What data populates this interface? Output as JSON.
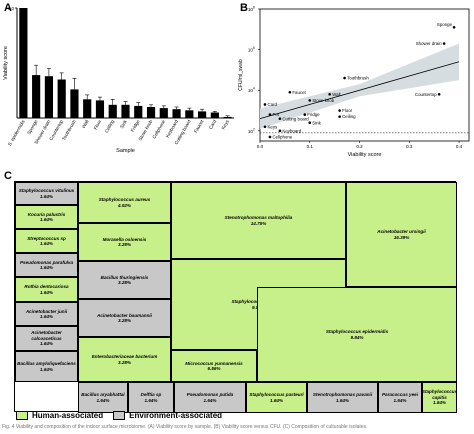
{
  "panels": {
    "a": "A",
    "b": "B",
    "c": "C"
  },
  "chart_data": [
    {
      "type": "bar",
      "ylabel": "Viability score",
      "xlabel": "Sample",
      "ymax_label": "1.0",
      "ylim": [
        0,
        1.0
      ],
      "categories": [
        "S. epidermidis",
        "Sponge",
        "Shower drain",
        "Countertop",
        "Toothbrush",
        "Wall",
        "Floor",
        "Ceiling",
        "Sink",
        "Fridge",
        "Stove knob",
        "Cellphone",
        "Keyboard",
        "Cutting board",
        "Faucet",
        "Card",
        "Keys"
      ],
      "values": [
        1.0,
        0.39,
        0.38,
        0.35,
        0.26,
        0.17,
        0.16,
        0.12,
        0.12,
        0.11,
        0.1,
        0.09,
        0.08,
        0.07,
        0.06,
        0.05,
        0.01
      ],
      "errors": [
        0.0,
        0.09,
        0.07,
        0.06,
        0.1,
        0.04,
        0.03,
        0.05,
        0.03,
        0.03,
        0.02,
        0.02,
        0.02,
        0.02,
        0.02,
        0.01,
        0.01
      ]
    },
    {
      "type": "scatter",
      "xlabel": "Viability score",
      "ylabel": "CFU/ml_swab",
      "x_ticks": [
        "0.0",
        "0.1",
        "0.2",
        "0.3",
        "0.4"
      ],
      "y_ticks_exp": [
        "2",
        "4",
        "6",
        "8"
      ],
      "y_ticks_base": "10",
      "xlim": [
        0,
        0.42
      ],
      "ylim_log10": [
        1.5,
        8
      ],
      "points": [
        {
          "label": "Sponge",
          "x": 0.39,
          "y": 7.1
        },
        {
          "label": "Shower drain",
          "x": 0.37,
          "y": 6.3
        },
        {
          "label": "Toothbrush",
          "x": 0.17,
          "y": 4.6
        },
        {
          "label": "Countertop",
          "x": 0.36,
          "y": 3.8
        },
        {
          "label": "Faucet",
          "x": 0.06,
          "y": 3.9
        },
        {
          "label": "Stove knob",
          "x": 0.1,
          "y": 3.5
        },
        {
          "label": "Wall",
          "x": 0.14,
          "y": 3.8
        },
        {
          "label": "Card",
          "x": 0.01,
          "y": 3.3
        },
        {
          "label": "Fridge",
          "x": 0.09,
          "y": 2.8
        },
        {
          "label": "Floor",
          "x": 0.16,
          "y": 3.0
        },
        {
          "label": "Ceiling",
          "x": 0.16,
          "y": 2.7
        },
        {
          "label": "Pot",
          "x": 0.02,
          "y": 2.8
        },
        {
          "label": "Cutting board",
          "x": 0.04,
          "y": 2.6
        },
        {
          "label": "Sink",
          "x": 0.1,
          "y": 2.4
        },
        {
          "label": "Keys",
          "x": 0.01,
          "y": 2.2
        },
        {
          "label": "Keyboard",
          "x": 0.04,
          "y": 2.0
        },
        {
          "label": "Cellphone",
          "x": 0.02,
          "y": 1.7
        }
      ],
      "fit": {
        "x0": 0.0,
        "y0": 2.6,
        "x1": 0.4,
        "y1": 5.4
      },
      "band": [
        {
          "x": 0.0,
          "lo": 2.1,
          "hi": 3.1
        },
        {
          "x": 0.2,
          "lo": 3.7,
          "hi": 4.3
        },
        {
          "x": 0.4,
          "lo": 4.5,
          "hi": 6.3
        }
      ],
      "threshold_y": 1.9
    }
  ],
  "treemap": {
    "tiles": [
      {
        "name": "Staphylococcus vitulinus",
        "pct": "1.64%",
        "group": "env"
      },
      {
        "name": "Kocuria palustris",
        "pct": "1.64%",
        "group": "human"
      },
      {
        "name": "Streptococcus sp",
        "pct": "1.64%",
        "group": "human"
      },
      {
        "name": "Pseudomonas parafulva",
        "pct": "1.64%",
        "group": "env"
      },
      {
        "name": "Rothia dentocariosa",
        "pct": "1.64%",
        "group": "human"
      },
      {
        "name": "Acinetobacter junii",
        "pct": "1.64%",
        "group": "env"
      },
      {
        "name": "Acinetobacter calcoaceticus",
        "pct": "1.64%",
        "group": "env"
      },
      {
        "name": "Bacillus amyloliquefaciens",
        "pct": "1.64%",
        "group": "env"
      },
      {
        "name": "Staphylococcus aureus",
        "pct": "4.92%",
        "group": "human"
      },
      {
        "name": "Moraxella osloensis",
        "pct": "3.28%",
        "group": "human"
      },
      {
        "name": "Bacillus thuringiensis",
        "pct": "3.28%",
        "group": "env"
      },
      {
        "name": "Acinetobacter baumannii",
        "pct": "3.28%",
        "group": "env"
      },
      {
        "name": "Enterobacteriaceae bacterium",
        "pct": "3.28%",
        "group": "human"
      },
      {
        "name": "Stenotrophomonas maltophilia",
        "pct": "14.75%",
        "group": "human"
      },
      {
        "name": "Staphylococcus hominis",
        "pct": "9.84%",
        "group": "human"
      },
      {
        "name": "Micrococcus yunnanensis",
        "pct": "6.56%",
        "group": "human"
      },
      {
        "name": "Acinetobacter ursingii",
        "pct": "16.39%",
        "group": "human"
      },
      {
        "name": "Staphylococcus epidermidis",
        "pct": "9.84%",
        "group": "human"
      },
      {
        "name": "Bacillus aryabhattai",
        "pct": "1.64%",
        "group": "env"
      },
      {
        "name": "Delftia sp",
        "pct": "1.64%",
        "group": "env"
      },
      {
        "name": "Pseudomonas putida",
        "pct": "1.64%",
        "group": "env"
      },
      {
        "name": "Staphylococcus pasteuri",
        "pct": "1.64%",
        "group": "human"
      },
      {
        "name": "Stenotrophomonas pavanii",
        "pct": "1.64%",
        "group": "env"
      },
      {
        "name": "Paracoccus yeei",
        "pct": "1.64%",
        "group": "env"
      },
      {
        "name": "Staphylococcus capitis",
        "pct": "1.64%",
        "group": "human"
      }
    ],
    "legend": {
      "human_label": "Human-associated",
      "env_label": "Environment-associated",
      "human_color": "#c8f08a",
      "env_color": "#c8c8c8"
    }
  },
  "caption": "Fig. 4 Viability and composition of the indoor surface microbiome. (A) Viability score by sample. (B) Viability score versus CFU. (C) Composition of culturable isolates."
}
